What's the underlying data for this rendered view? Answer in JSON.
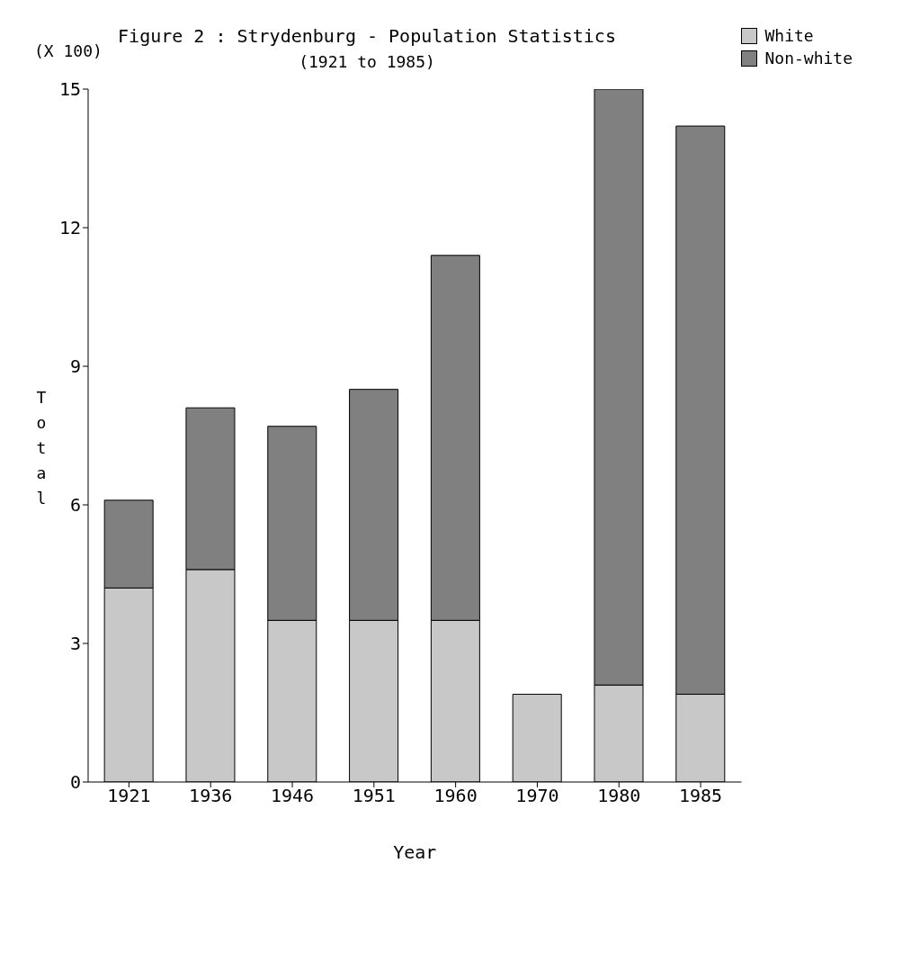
{
  "chart_data": {
    "type": "bar",
    "title": "Figure 2 : Strydenburg - Population Statistics",
    "subtitle": "(1921 to 1985)",
    "xlabel": "Year",
    "ylabel": "Total",
    "annotations": [
      "(X 100)"
    ],
    "categories": [
      "1921",
      "1936",
      "1946",
      "1951",
      "1960",
      "1970",
      "1980",
      "1985"
    ],
    "stacked": true,
    "series": [
      {
        "name": "White",
        "color": "#c8c8c8",
        "values": [
          4.2,
          4.6,
          3.5,
          3.5,
          3.5,
          1.9,
          2.1,
          1.9
        ]
      },
      {
        "name": "Non-white",
        "color": "#808080",
        "values": [
          1.9,
          3.5,
          4.2,
          5.0,
          7.9,
          0,
          12.9,
          12.3
        ]
      }
    ],
    "ylim": [
      0,
      15
    ],
    "yticks": [
      0,
      3,
      6,
      9,
      12,
      15
    ],
    "legend": "top right",
    "grid": false
  }
}
